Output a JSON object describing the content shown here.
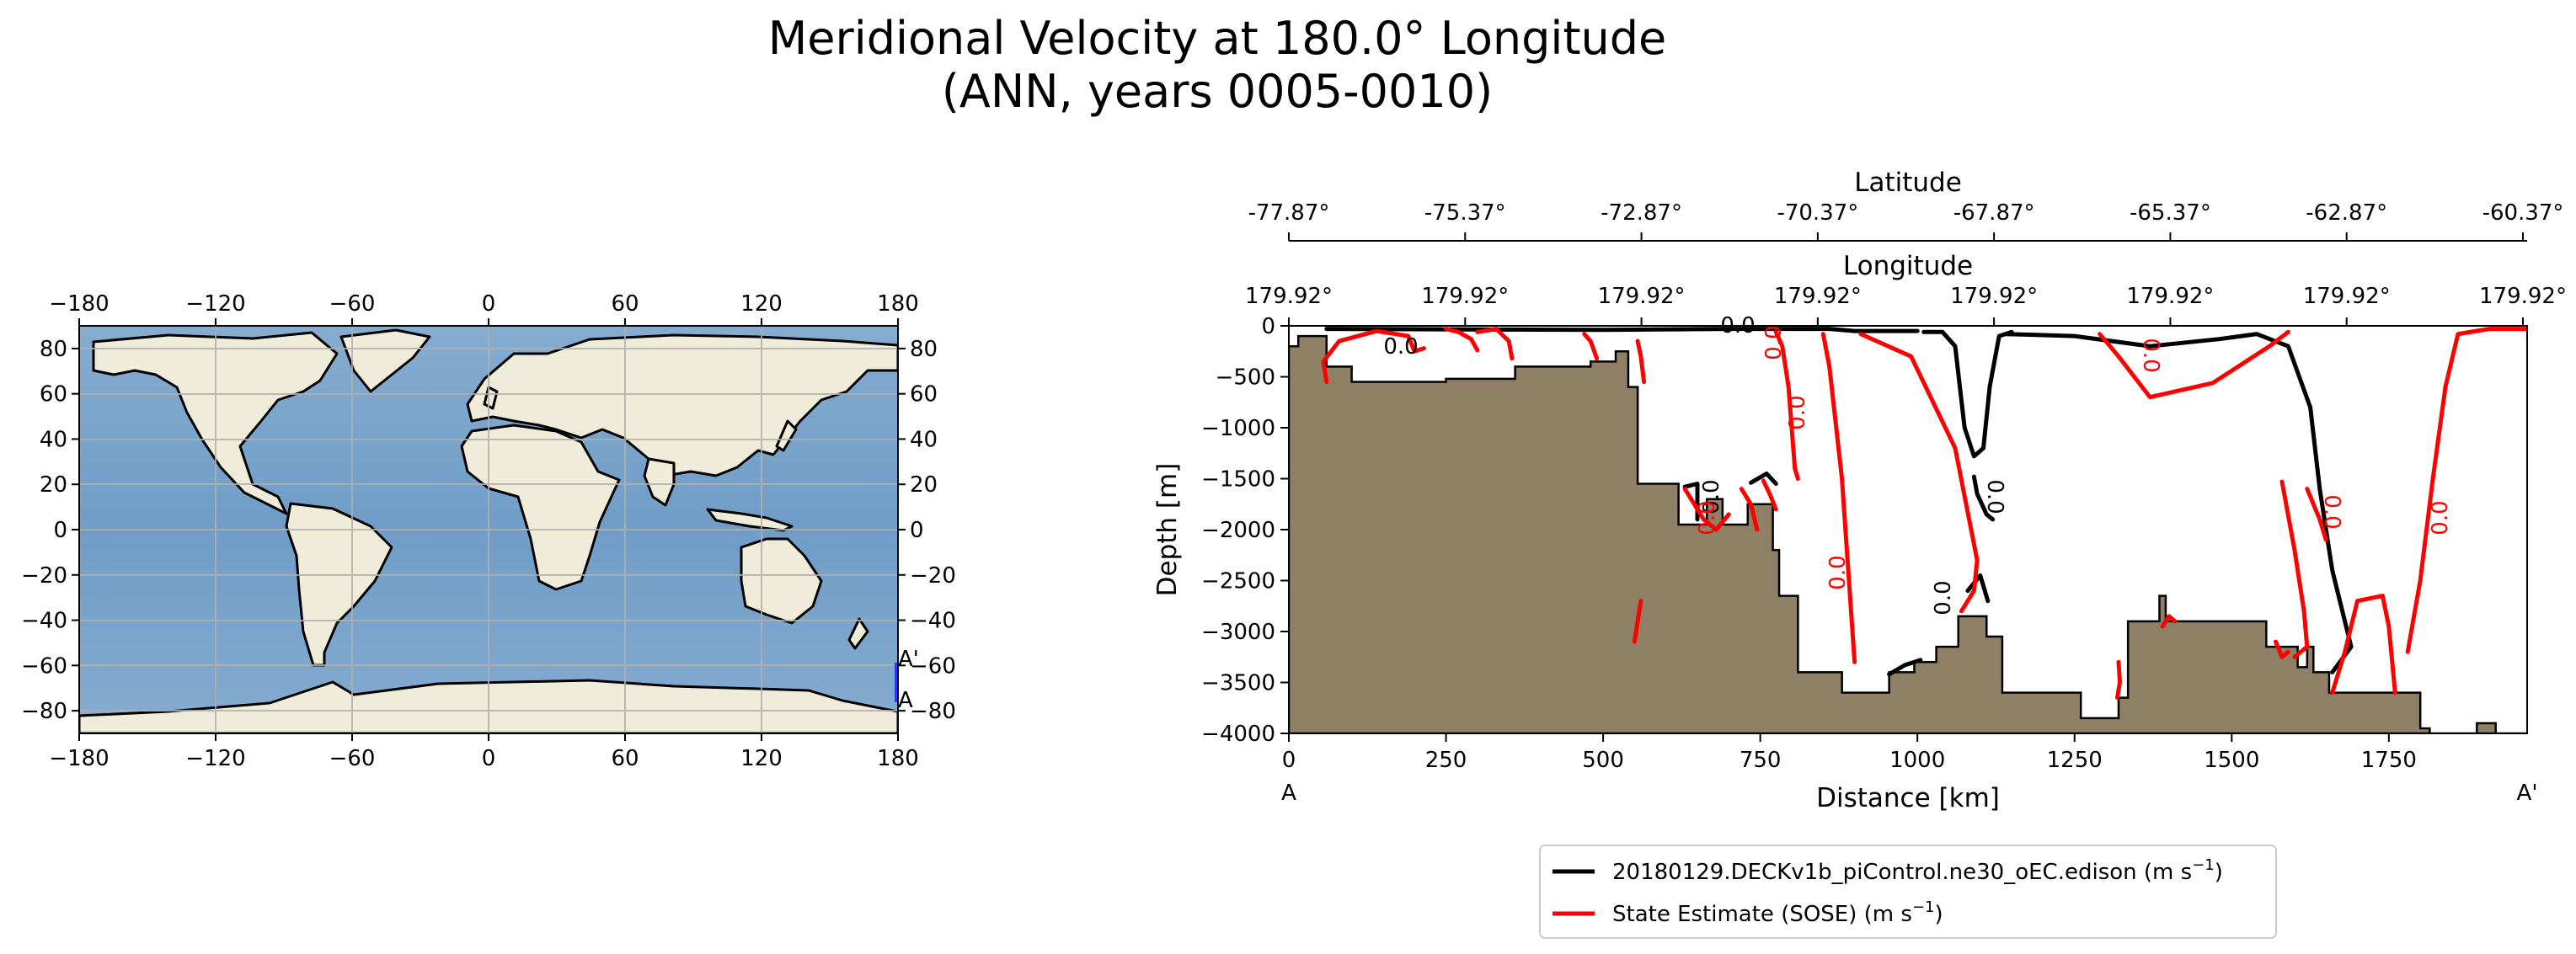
{
  "figure": {
    "title_line1": "Meridional Velocity at 180.0° Longitude",
    "title_line2": "(ANN, years 0005-0010)"
  },
  "colors": {
    "ocean": "#7ea7cc",
    "land": "#efecd9",
    "bathymetry": "#8f7f65",
    "model_contour": "#000000",
    "obs_contour": "#ff0000",
    "transect": "#1f3cff",
    "grid": "#b0b0b0"
  },
  "map": {
    "xticks": [
      "−180",
      "−120",
      "−60",
      "0",
      "60",
      "120",
      "180"
    ],
    "yticks": [
      "80",
      "60",
      "40",
      "20",
      "0",
      "−20",
      "−40",
      "−60",
      "−80"
    ],
    "xlim": [
      -180,
      180
    ],
    "ylim": [
      -90,
      90
    ],
    "transect_lon": 180,
    "transect_lat": [
      -77.87,
      -60.37
    ],
    "label_start": "A",
    "label_end": "A'"
  },
  "chart_data": {
    "type": "contour",
    "xlabel": "Distance [km]",
    "ylabel": "Depth [m]",
    "xlim": [
      0,
      1970
    ],
    "ylim": [
      -4000,
      0
    ],
    "xticks": [
      "0",
      "250",
      "500",
      "750",
      "1000",
      "1250",
      "1500",
      "1750"
    ],
    "yticks": [
      "0",
      "−500",
      "−1000",
      "−1500",
      "−2000",
      "−2500",
      "−3000",
      "−3500",
      "−4000"
    ],
    "xtick_values": [
      0,
      250,
      500,
      750,
      1000,
      1250,
      1500,
      1750
    ],
    "ytick_values": [
      0,
      -500,
      -1000,
      -1500,
      -2000,
      -2500,
      -3000,
      -3500,
      -4000
    ],
    "start_label": "A",
    "end_label": "A'",
    "latitude_axis": {
      "label": "Latitude",
      "ticks": [
        "-77.87°",
        "-75.37°",
        "-72.87°",
        "-70.37°",
        "-67.87°",
        "-65.37°",
        "-62.87°",
        "-60.37°"
      ]
    },
    "longitude_axis": {
      "label": "Longitude",
      "ticks": [
        "179.92°",
        "179.92°",
        "179.92°",
        "179.92°",
        "179.92°",
        "179.92°",
        "179.92°",
        "179.92°"
      ]
    },
    "contour_level": 0.0,
    "contour_labels": [
      "0.0",
      "0.0",
      "0.0",
      "0.0",
      "0.0",
      "0.0",
      "0.0",
      "0.0",
      "0.0",
      "0.0",
      "0.0",
      "0.0"
    ],
    "bathymetry": [
      [
        0,
        -200
      ],
      [
        15,
        -200
      ],
      [
        15,
        -100
      ],
      [
        60,
        -100
      ],
      [
        60,
        -400
      ],
      [
        100,
        -400
      ],
      [
        100,
        -550
      ],
      [
        250,
        -550
      ],
      [
        250,
        -520
      ],
      [
        360,
        -520
      ],
      [
        360,
        -400
      ],
      [
        480,
        -400
      ],
      [
        480,
        -350
      ],
      [
        520,
        -350
      ],
      [
        520,
        -250
      ],
      [
        540,
        -250
      ],
      [
        540,
        -600
      ],
      [
        555,
        -600
      ],
      [
        555,
        -1550
      ],
      [
        620,
        -1550
      ],
      [
        620,
        -1950
      ],
      [
        665,
        -1950
      ],
      [
        665,
        -1700
      ],
      [
        690,
        -1700
      ],
      [
        690,
        -1950
      ],
      [
        730,
        -1950
      ],
      [
        730,
        -1750
      ],
      [
        770,
        -1750
      ],
      [
        770,
        -2200
      ],
      [
        780,
        -2200
      ],
      [
        780,
        -2650
      ],
      [
        810,
        -2650
      ],
      [
        810,
        -3400
      ],
      [
        880,
        -3400
      ],
      [
        880,
        -3600
      ],
      [
        955,
        -3600
      ],
      [
        955,
        -3400
      ],
      [
        995,
        -3400
      ],
      [
        995,
        -3300
      ],
      [
        1030,
        -3300
      ],
      [
        1030,
        -3150
      ],
      [
        1065,
        -3150
      ],
      [
        1065,
        -2850
      ],
      [
        1110,
        -2850
      ],
      [
        1110,
        -3050
      ],
      [
        1135,
        -3050
      ],
      [
        1135,
        -3600
      ],
      [
        1260,
        -3600
      ],
      [
        1260,
        -3850
      ],
      [
        1320,
        -3850
      ],
      [
        1320,
        -3650
      ],
      [
        1335,
        -3650
      ],
      [
        1335,
        -2900
      ],
      [
        1385,
        -2900
      ],
      [
        1385,
        -2650
      ],
      [
        1395,
        -2650
      ],
      [
        1395,
        -2900
      ],
      [
        1555,
        -2900
      ],
      [
        1555,
        -3150
      ],
      [
        1605,
        -3150
      ],
      [
        1605,
        -3350
      ],
      [
        1620,
        -3350
      ],
      [
        1620,
        -3150
      ],
      [
        1630,
        -3150
      ],
      [
        1630,
        -3400
      ],
      [
        1655,
        -3400
      ],
      [
        1655,
        -3600
      ],
      [
        1800,
        -3600
      ],
      [
        1800,
        -3950
      ],
      [
        1815,
        -3950
      ],
      [
        1815,
        -4000
      ],
      [
        1890,
        -4000
      ],
      [
        1890,
        -3900
      ],
      [
        1920,
        -3900
      ],
      [
        1920,
        -4000
      ],
      [
        1970,
        -4000
      ]
    ],
    "series": [
      {
        "name": "20180129.DECKv1b_piControl.ne30_oEC.edison",
        "units": "m s",
        "units_sup": "−1",
        "color": "#000000",
        "contours": [
          [
            [
              60,
              -30
            ],
            [
              500,
              -40
            ],
            [
              700,
              -30
            ],
            [
              860,
              -30
            ],
            [
              900,
              -50
            ],
            [
              1000,
              -50
            ]
          ],
          [
            [
              1010,
              -60
            ],
            [
              1040,
              -60
            ],
            [
              1060,
              -200
            ],
            [
              1075,
              -1000
            ],
            [
              1090,
              -1280
            ],
            [
              1105,
              -1200
            ],
            [
              1115,
              -600
            ],
            [
              1130,
              -100
            ],
            [
              1150,
              -60
            ]
          ],
          [
            [
              1090,
              -1480
            ],
            [
              1095,
              -1650
            ],
            [
              1110,
              -1850
            ],
            [
              1120,
              -1900
            ]
          ],
          [
            [
              1140,
              -80
            ],
            [
              1250,
              -100
            ],
            [
              1370,
              -200
            ],
            [
              1480,
              -130
            ],
            [
              1540,
              -80
            ],
            [
              1590,
              -200
            ],
            [
              1625,
              -800
            ],
            [
              1640,
              -1600
            ],
            [
              1660,
              -2400
            ],
            [
              1690,
              -3150
            ],
            [
              1660,
              -3400
            ]
          ],
          [
            [
              955,
              -3420
            ],
            [
              980,
              -3330
            ],
            [
              1005,
              -3280
            ]
          ],
          [
            [
              1080,
              -2600
            ],
            [
              1100,
              -2450
            ],
            [
              1112,
              -2700
            ]
          ],
          [
            [
              630,
              -1580
            ],
            [
              650,
              -1550
            ],
            [
              650,
              -1900
            ]
          ],
          [
            [
              735,
              -1540
            ],
            [
              760,
              -1450
            ],
            [
              775,
              -1550
            ]
          ]
        ]
      },
      {
        "name": "State Estimate (SOSE)",
        "units": "m s",
        "units_sup": "−1",
        "color": "#ff0000",
        "contours": [
          [
            [
              60,
              -550
            ],
            [
              55,
              -350
            ],
            [
              80,
              -150
            ],
            [
              140,
              -50
            ],
            [
              190,
              -100
            ],
            [
              200,
              -250
            ],
            [
              215,
              -220
            ]
          ],
          [
            [
              250,
              -30
            ],
            [
              270,
              -60
            ],
            [
              290,
              -130
            ],
            [
              300,
              -240
            ]
          ],
          [
            [
              300,
              -60
            ],
            [
              330,
              -30
            ],
            [
              350,
              -150
            ],
            [
              355,
              -320
            ]
          ],
          [
            [
              470,
              -80
            ],
            [
              480,
              -150
            ],
            [
              490,
              -320
            ]
          ],
          [
            [
              555,
              -150
            ],
            [
              560,
              -300
            ],
            [
              565,
              -550
            ]
          ],
          [
            [
              775,
              -60
            ],
            [
              785,
              -200
            ],
            [
              795,
              -600
            ],
            [
              805,
              -1400
            ],
            [
              810,
              -1500
            ]
          ],
          [
            [
              850,
              -80
            ],
            [
              860,
              -400
            ],
            [
              880,
              -1500
            ],
            [
              900,
              -3300
            ]
          ],
          [
            [
              910,
              -80
            ],
            [
              990,
              -300
            ],
            [
              1060,
              -1200
            ],
            [
              1095,
              -2300
            ],
            [
              1090,
              -2600
            ],
            [
              1070,
              -2800
            ]
          ],
          [
            [
              1290,
              -80
            ],
            [
              1320,
              -300
            ],
            [
              1370,
              -700
            ],
            [
              1470,
              -560
            ],
            [
              1560,
              -200
            ],
            [
              1590,
              -60
            ]
          ],
          [
            [
              1580,
              -1530
            ],
            [
              1600,
              -2200
            ],
            [
              1615,
              -2800
            ],
            [
              1620,
              -3150
            ],
            [
              1600,
              -3250
            ]
          ],
          [
            [
              1660,
              -3600
            ],
            [
              1680,
              -3200
            ],
            [
              1700,
              -2700
            ],
            [
              1740,
              -2650
            ],
            [
              1750,
              -2950
            ],
            [
              1760,
              -3600
            ]
          ],
          [
            [
              1780,
              -3200
            ],
            [
              1800,
              -2500
            ],
            [
              1820,
              -1500
            ],
            [
              1840,
              -600
            ],
            [
              1860,
              -80
            ],
            [
              1910,
              -30
            ],
            [
              1970,
              -30
            ]
          ],
          [
            [
              1320,
              -3300
            ],
            [
              1322,
              -3500
            ],
            [
              1318,
              -3650
            ]
          ],
          [
            [
              1390,
              -2950
            ],
            [
              1400,
              -2850
            ],
            [
              1410,
              -2900
            ]
          ],
          [
            [
              1570,
              -3100
            ],
            [
              1580,
              -3250
            ],
            [
              1590,
              -3200
            ]
          ],
          [
            [
              630,
              -1600
            ],
            [
              660,
              -1900
            ],
            [
              680,
              -2000
            ],
            [
              700,
              -1850
            ]
          ],
          [
            [
              720,
              -1600
            ],
            [
              735,
              -1750
            ],
            [
              745,
              -2000
            ]
          ],
          [
            [
              755,
              -1520
            ],
            [
              765,
              -1650
            ],
            [
              775,
              -1800
            ]
          ],
          [
            [
              550,
              -3100
            ],
            [
              555,
              -2900
            ],
            [
              560,
              -2700
            ]
          ],
          [
            [
              1620,
              -1600
            ],
            [
              1640,
              -1900
            ],
            [
              1650,
              -2100
            ]
          ]
        ]
      }
    ]
  },
  "legend": {
    "entries": [
      {
        "text": "20180129.DECKv1b_piControl.ne30_oEC.edison (m s",
        "sup": "−1",
        "tail": ")"
      },
      {
        "text": "State Estimate (SOSE) (m s",
        "sup": "−1",
        "tail": ")"
      }
    ]
  }
}
